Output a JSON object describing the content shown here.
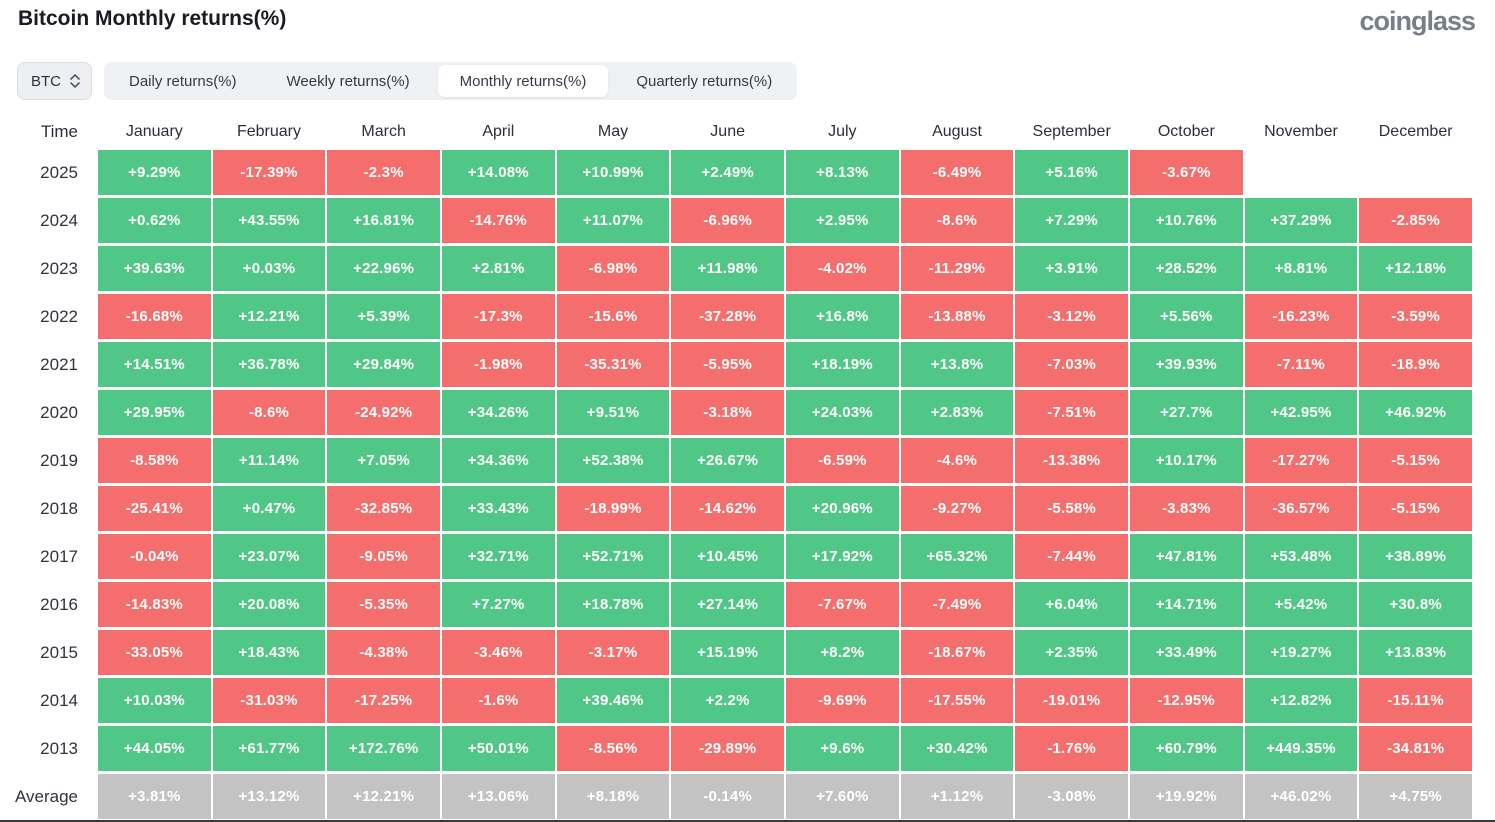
{
  "header": {
    "title": "Bitcoin Monthly returns(%)",
    "logo": "coinglass"
  },
  "controls": {
    "symbol_select": {
      "value": "BTC"
    },
    "tabs": [
      {
        "label": "Daily returns(%)",
        "active": false
      },
      {
        "label": "Weekly returns(%)",
        "active": false
      },
      {
        "label": "Monthly returns(%)",
        "active": true
      },
      {
        "label": "Quarterly returns(%)",
        "active": false
      }
    ]
  },
  "colors": {
    "positive": "#51c787",
    "negative": "#f56e6e",
    "average": "#c3c3c3"
  },
  "chart_data": {
    "type": "heatmap",
    "title": "Bitcoin Monthly returns(%)",
    "columns": [
      "Time",
      "January",
      "February",
      "March",
      "April",
      "May",
      "June",
      "July",
      "August",
      "September",
      "October",
      "November",
      "December"
    ],
    "rows": [
      {
        "label": "2025",
        "values": [
          "+9.29%",
          "-17.39%",
          "-2.3%",
          "+14.08%",
          "+10.99%",
          "+2.49%",
          "+8.13%",
          "-6.49%",
          "+5.16%",
          "-3.67%",
          "",
          ""
        ]
      },
      {
        "label": "2024",
        "values": [
          "+0.62%",
          "+43.55%",
          "+16.81%",
          "-14.76%",
          "+11.07%",
          "-6.96%",
          "+2.95%",
          "-8.6%",
          "+7.29%",
          "+10.76%",
          "+37.29%",
          "-2.85%"
        ]
      },
      {
        "label": "2023",
        "values": [
          "+39.63%",
          "+0.03%",
          "+22.96%",
          "+2.81%",
          "-6.98%",
          "+11.98%",
          "-4.02%",
          "-11.29%",
          "+3.91%",
          "+28.52%",
          "+8.81%",
          "+12.18%"
        ]
      },
      {
        "label": "2022",
        "values": [
          "-16.68%",
          "+12.21%",
          "+5.39%",
          "-17.3%",
          "-15.6%",
          "-37.28%",
          "+16.8%",
          "-13.88%",
          "-3.12%",
          "+5.56%",
          "-16.23%",
          "-3.59%"
        ]
      },
      {
        "label": "2021",
        "values": [
          "+14.51%",
          "+36.78%",
          "+29.84%",
          "-1.98%",
          "-35.31%",
          "-5.95%",
          "+18.19%",
          "+13.8%",
          "-7.03%",
          "+39.93%",
          "-7.11%",
          "-18.9%"
        ]
      },
      {
        "label": "2020",
        "values": [
          "+29.95%",
          "-8.6%",
          "-24.92%",
          "+34.26%",
          "+9.51%",
          "-3.18%",
          "+24.03%",
          "+2.83%",
          "-7.51%",
          "+27.7%",
          "+42.95%",
          "+46.92%"
        ]
      },
      {
        "label": "2019",
        "values": [
          "-8.58%",
          "+11.14%",
          "+7.05%",
          "+34.36%",
          "+52.38%",
          "+26.67%",
          "-6.59%",
          "-4.6%",
          "-13.38%",
          "+10.17%",
          "-17.27%",
          "-5.15%"
        ]
      },
      {
        "label": "2018",
        "values": [
          "-25.41%",
          "+0.47%",
          "-32.85%",
          "+33.43%",
          "-18.99%",
          "-14.62%",
          "+20.96%",
          "-9.27%",
          "-5.58%",
          "-3.83%",
          "-36.57%",
          "-5.15%"
        ]
      },
      {
        "label": "2017",
        "values": [
          "-0.04%",
          "+23.07%",
          "-9.05%",
          "+32.71%",
          "+52.71%",
          "+10.45%",
          "+17.92%",
          "+65.32%",
          "-7.44%",
          "+47.81%",
          "+53.48%",
          "+38.89%"
        ]
      },
      {
        "label": "2016",
        "values": [
          "-14.83%",
          "+20.08%",
          "-5.35%",
          "+7.27%",
          "+18.78%",
          "+27.14%",
          "-7.67%",
          "-7.49%",
          "+6.04%",
          "+14.71%",
          "+5.42%",
          "+30.8%"
        ]
      },
      {
        "label": "2015",
        "values": [
          "-33.05%",
          "+18.43%",
          "-4.38%",
          "-3.46%",
          "-3.17%",
          "+15.19%",
          "+8.2%",
          "-18.67%",
          "+2.35%",
          "+33.49%",
          "+19.27%",
          "+13.83%"
        ]
      },
      {
        "label": "2014",
        "values": [
          "+10.03%",
          "-31.03%",
          "-17.25%",
          "-1.6%",
          "+39.46%",
          "+2.2%",
          "-9.69%",
          "-17.55%",
          "-19.01%",
          "-12.95%",
          "+12.82%",
          "-15.11%"
        ]
      },
      {
        "label": "2013",
        "values": [
          "+44.05%",
          "+61.77%",
          "+172.76%",
          "+50.01%",
          "-8.56%",
          "-29.89%",
          "+9.6%",
          "+30.42%",
          "-1.76%",
          "+60.79%",
          "+449.35%",
          "-34.81%"
        ]
      },
      {
        "label": "Average",
        "is_average": true,
        "values": [
          "+3.81%",
          "+13.12%",
          "+12.21%",
          "+13.06%",
          "+8.18%",
          "-0.14%",
          "+7.60%",
          "+1.12%",
          "-3.08%",
          "+19.92%",
          "+46.02%",
          "+4.75%"
        ]
      }
    ]
  }
}
